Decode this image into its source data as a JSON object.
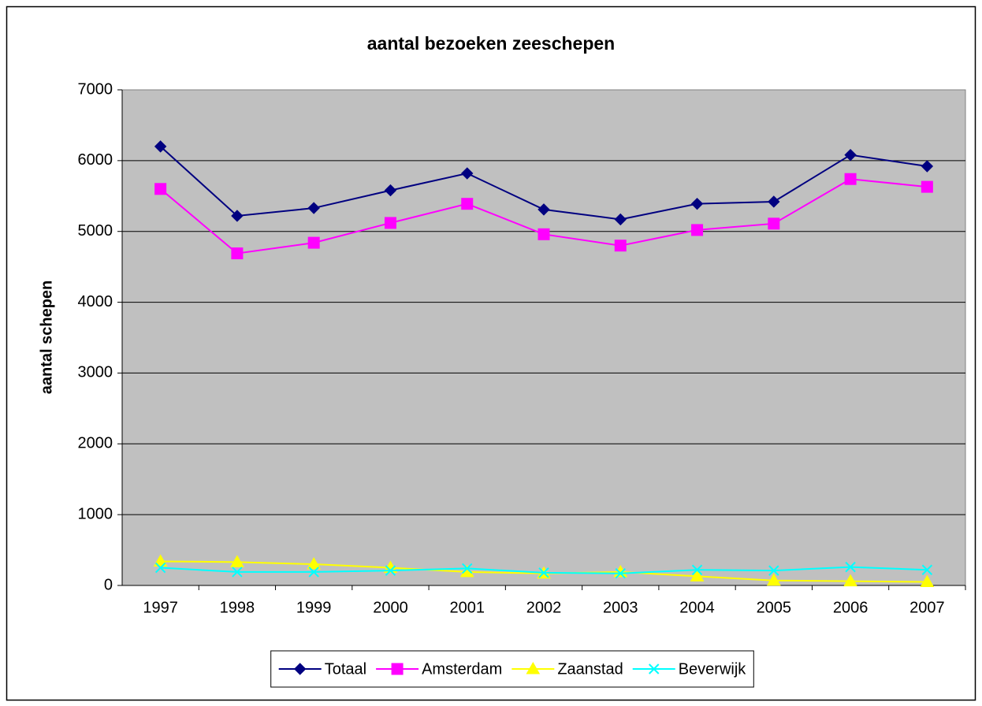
{
  "chart_data": {
    "type": "line",
    "title": "aantal bezoeken zeeschepen",
    "y_label": "aantal schepen",
    "categories": [
      "1997",
      "1998",
      "1999",
      "2000",
      "2001",
      "2002",
      "2003",
      "2004",
      "2005",
      "2006",
      "2007"
    ],
    "series": [
      {
        "name": "Totaal",
        "color": "#000080",
        "marker": "diamond",
        "values": [
          6200,
          5220,
          5330,
          5580,
          5820,
          5310,
          5170,
          5390,
          5420,
          6080,
          5920
        ]
      },
      {
        "name": "Amsterdam",
        "color": "#ff00ff",
        "marker": "square",
        "values": [
          5600,
          4690,
          4840,
          5120,
          5390,
          4960,
          4800,
          5020,
          5110,
          5740,
          5630
        ]
      },
      {
        "name": "Zaanstad",
        "color": "#ffff00",
        "marker": "triangle",
        "values": [
          340,
          330,
          300,
          250,
          190,
          170,
          190,
          130,
          70,
          60,
          50
        ]
      },
      {
        "name": "Beverwijk",
        "color": "#00ffff",
        "marker": "x",
        "values": [
          250,
          190,
          190,
          210,
          240,
          180,
          170,
          220,
          210,
          260,
          220
        ]
      }
    ],
    "ylim": [
      0,
      7000
    ],
    "yticks": [
      0,
      1000,
      2000,
      3000,
      4000,
      5000,
      6000,
      7000
    ],
    "grid": true,
    "legend": "bottom"
  }
}
